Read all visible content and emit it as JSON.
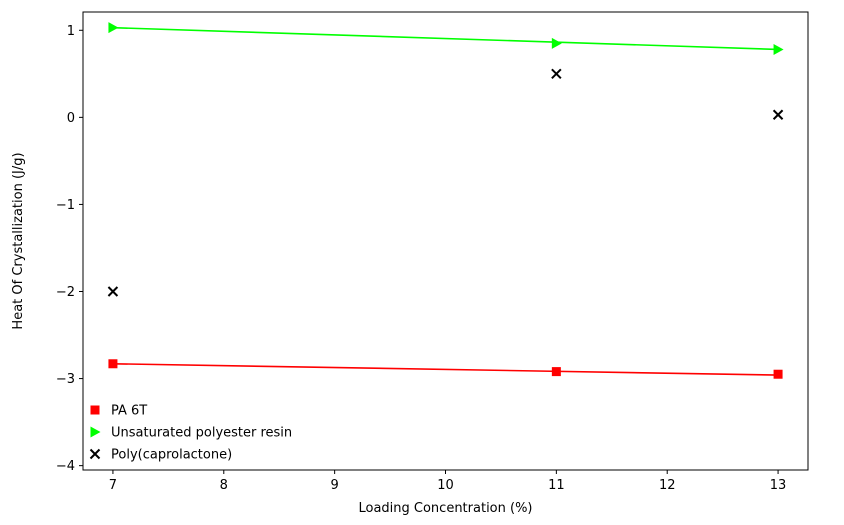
{
  "chart_data": {
    "type": "scatter",
    "xlabel": "Loading Concentration (%)",
    "ylabel": "Heat Of Crystallization (J/g)",
    "xlim": [
      6.73,
      13.27
    ],
    "ylim": [
      -4.05,
      1.21
    ],
    "xticks": [
      "7",
      "8",
      "9",
      "10",
      "11",
      "12",
      "13"
    ],
    "yticks": [
      "1",
      "0",
      "−1",
      "−2",
      "−3",
      "−4"
    ],
    "grid": false,
    "legend_position": "lower-left",
    "series": [
      {
        "name": "PA 6T",
        "marker": "square",
        "color": "#ff0000",
        "x": [
          7,
          11,
          13
        ],
        "y": [
          -2.83,
          -2.92,
          -2.95
        ],
        "fit_line": {
          "x": [
            7,
            13
          ],
          "y": [
            -2.83,
            -2.96
          ]
        }
      },
      {
        "name": "Unsaturated polyester resin",
        "marker": "triangle-right",
        "color": "#00ff00",
        "x": [
          7,
          11,
          13
        ],
        "y": [
          1.03,
          0.85,
          0.78
        ],
        "fit_line": {
          "x": [
            7,
            13
          ],
          "y": [
            1.03,
            0.78
          ]
        }
      },
      {
        "name": "Poly(caprolactone)",
        "marker": "x",
        "color": "#000000",
        "x": [
          7,
          11,
          13
        ],
        "y": [
          -2.0,
          0.5,
          0.03
        ],
        "fit_line": null
      }
    ]
  }
}
